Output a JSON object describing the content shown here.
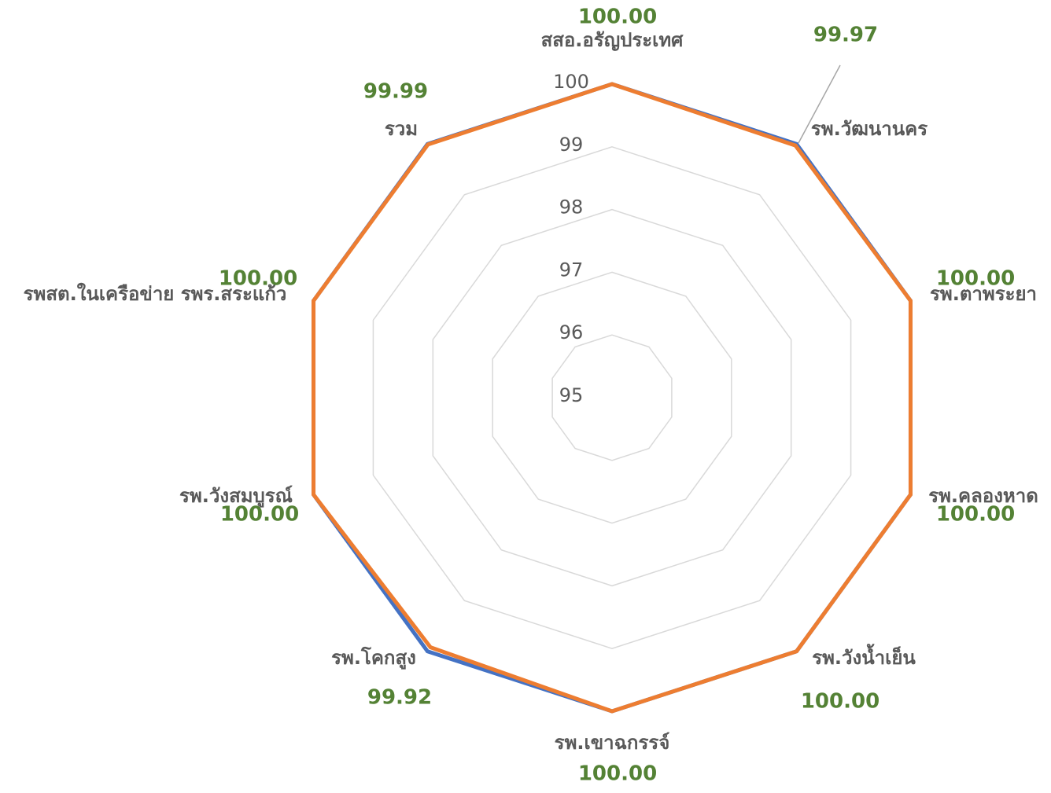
{
  "chart_data": {
    "type": "radar",
    "categories": [
      "สสอ.อรัญประเทศ",
      "รพ.วัฒนานคร",
      "รพ.ตาพระยา",
      "รพ.คลองหาด",
      "รพ.วังน้ำเย็น",
      "รพ.เขาฉกรรจ์",
      "รพ.โคกสูง",
      "รพ.วังสมบูรณ์",
      "รพสต.ในเครือข่าย รพร.สระแก้ว",
      "รวม"
    ],
    "series": [
      {
        "color": "#4472c4",
        "values": [
          100,
          100,
          100,
          100,
          100,
          100,
          100,
          100,
          100,
          100
        ]
      },
      {
        "color": "#ed7d31",
        "values": [
          100,
          99.97,
          100,
          100,
          100,
          100,
          99.92,
          100,
          100,
          99.99
        ],
        "value_labels": [
          "100.00",
          "99.97",
          "100.00",
          "100.00",
          "100.00",
          "100.00",
          "99.92",
          "100.00",
          "100.00",
          "99.99"
        ]
      }
    ],
    "ylim": [
      95,
      100
    ],
    "yticks": [
      95,
      96,
      97,
      98,
      99,
      100
    ],
    "grid": true
  }
}
